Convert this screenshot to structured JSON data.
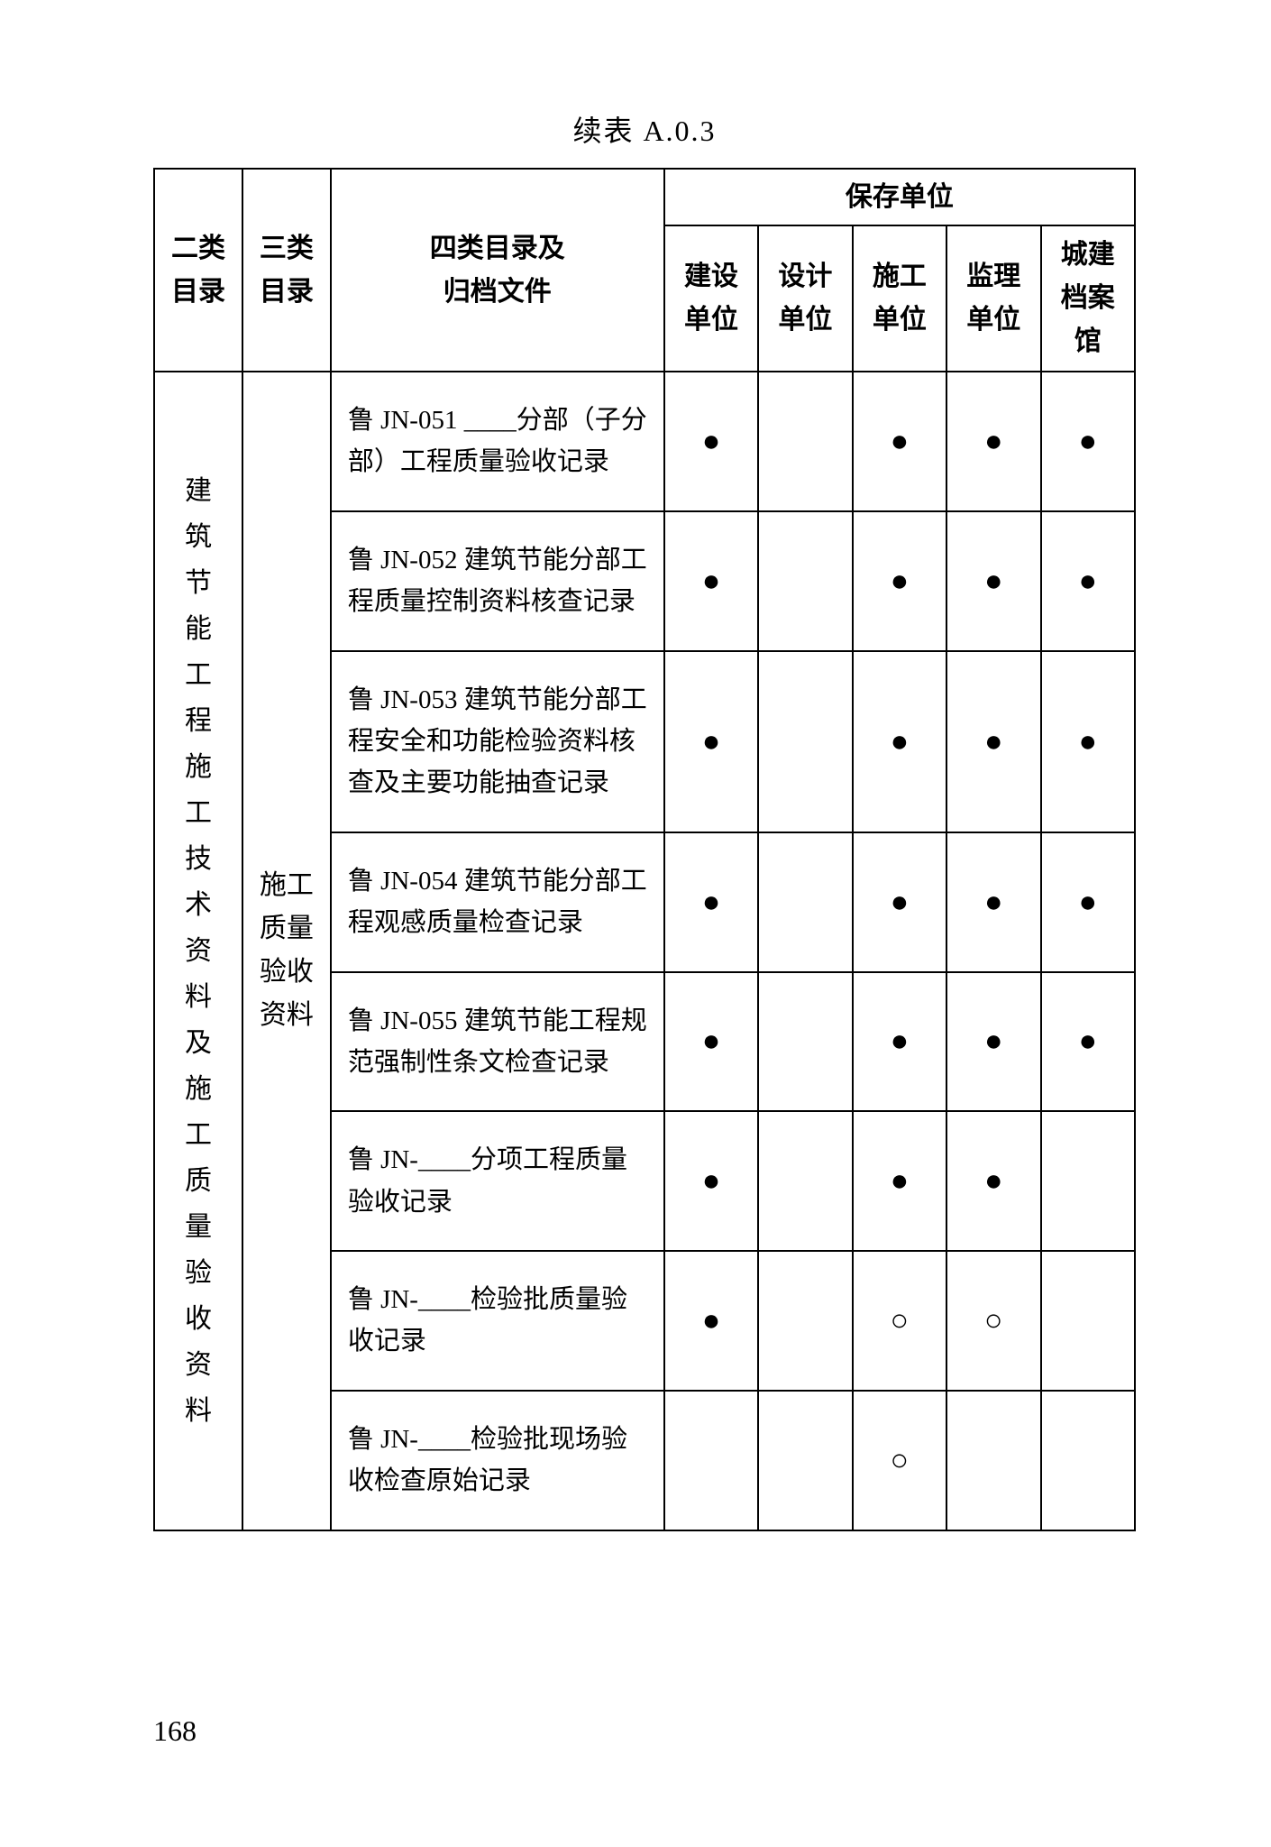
{
  "caption": "续表 A.0.3",
  "page_number": "168",
  "columns": {
    "col1": "二类\n目录",
    "col2": "三类\n目录",
    "col3": "四类目录及\n归档文件",
    "group": "保存单位",
    "c4": "建设\n单位",
    "c5": "设计\n单位",
    "c6": "施工\n单位",
    "c7": "监理\n单位",
    "c8": "城建\n档案\n馆"
  },
  "row_headers": {
    "cat2": "建\n筑\n节\n能\n工\n程\n施\n工\n技\n术\n资\n料\n及\n施\n工\n质\n量\n验\n收\n资\n料",
    "cat3": "施工\n质量\n验收\n资料"
  },
  "marks": {
    "solid": "●",
    "hollow": "○",
    "blank": ""
  },
  "rows": [
    {
      "desc": "鲁 JN-051 ____分部（子分部）工程质量验收记录",
      "cells": [
        "solid",
        "blank",
        "solid",
        "solid",
        "solid"
      ]
    },
    {
      "desc": "鲁 JN-052 建筑节能分部工程质量控制资料核查记录",
      "cells": [
        "solid",
        "blank",
        "solid",
        "solid",
        "solid"
      ]
    },
    {
      "desc": "鲁 JN-053 建筑节能分部工程安全和功能检验资料核查及主要功能抽查记录",
      "cells": [
        "solid",
        "blank",
        "solid",
        "solid",
        "solid"
      ]
    },
    {
      "desc": "鲁 JN-054 建筑节能分部工程观感质量检查记录",
      "cells": [
        "solid",
        "blank",
        "solid",
        "solid",
        "solid"
      ]
    },
    {
      "desc": "鲁 JN-055 建筑节能工程规范强制性条文检查记录",
      "cells": [
        "solid",
        "blank",
        "solid",
        "solid",
        "solid"
      ]
    },
    {
      "desc": "鲁 JN-____分项工程质量验收记录",
      "cells": [
        "solid",
        "blank",
        "solid",
        "solid",
        "blank"
      ]
    },
    {
      "desc": "鲁 JN-____检验批质量验收记录",
      "cells": [
        "solid",
        "blank",
        "hollow",
        "hollow",
        "blank"
      ]
    },
    {
      "desc": "鲁 JN-____检验批现场验收检查原始记录",
      "cells": [
        "blank",
        "blank",
        "hollow",
        "blank",
        "blank"
      ]
    }
  ],
  "style": {
    "font_family": "SimSun",
    "font_size_body": 30,
    "border_color": "#000000",
    "background": "#ffffff",
    "col_widths_pct": [
      9,
      9,
      34,
      9.6,
      9.6,
      9.6,
      9.6,
      9.6
    ]
  }
}
